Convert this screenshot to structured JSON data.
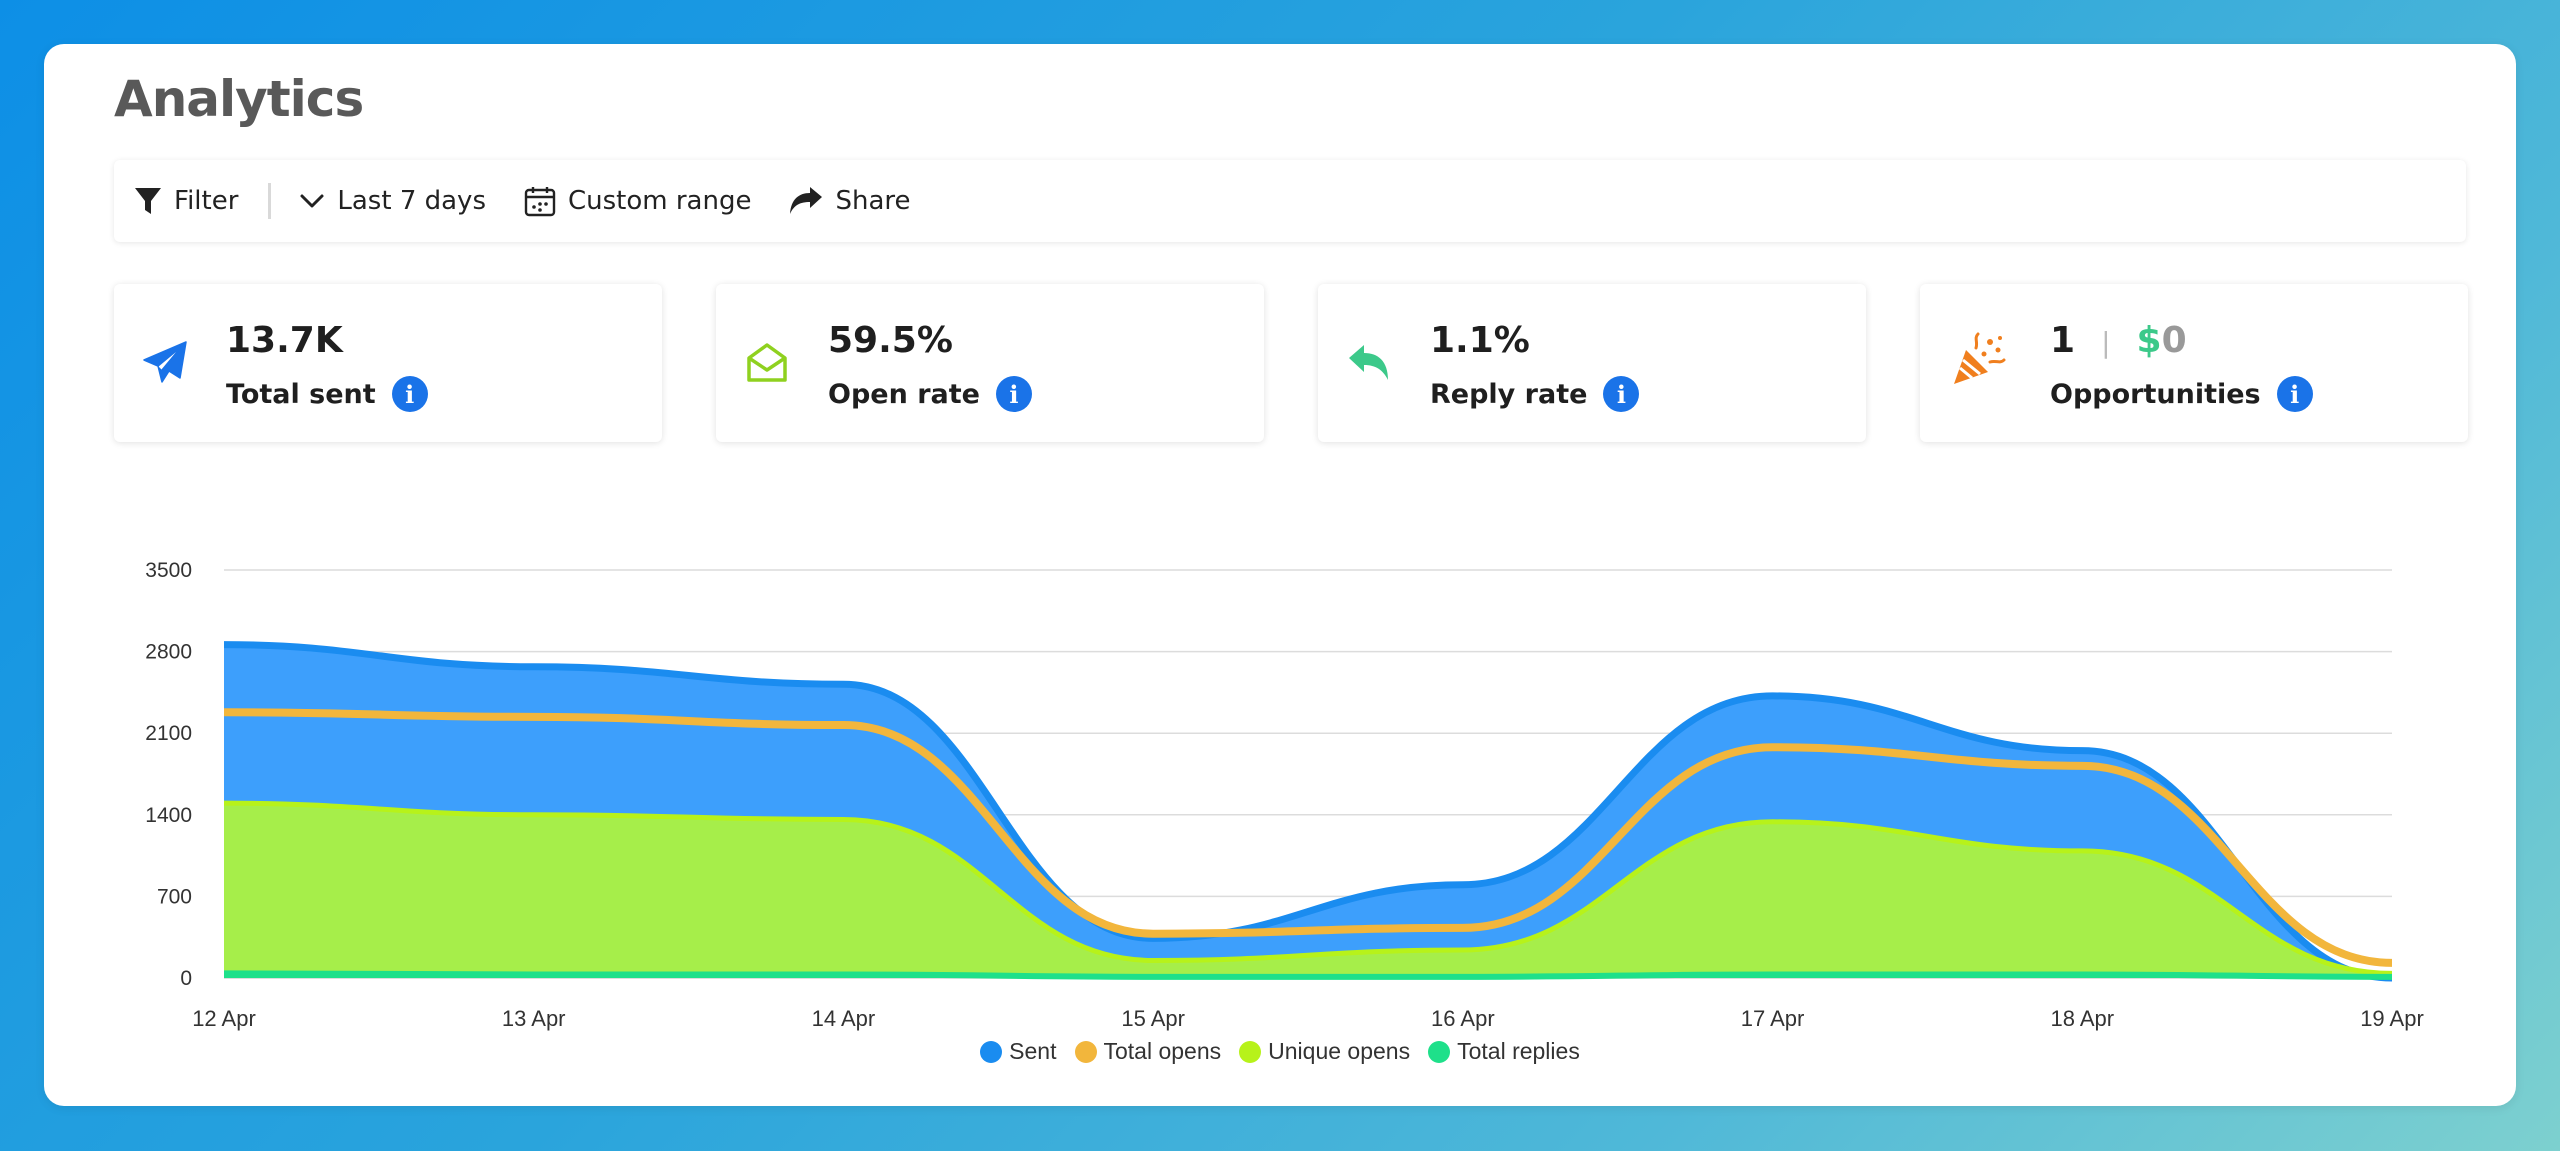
{
  "page": {
    "title": "Analytics"
  },
  "toolbar": {
    "filter_label": "Filter",
    "range_label": "Last 7 days",
    "custom_label": "Custom range",
    "share_label": "Share"
  },
  "cards": {
    "sent": {
      "value": "13.7K",
      "label": "Total sent",
      "icon": "paper-plane-icon",
      "color": "#1a73e8"
    },
    "open": {
      "value": "59.5%",
      "label": "Open rate",
      "icon": "envelope-open-icon",
      "color": "#8fd11f"
    },
    "reply": {
      "value": "1.1%",
      "label": "Reply rate",
      "icon": "reply-icon",
      "color": "#3cc98a"
    },
    "opps": {
      "count": "1",
      "separator": "|",
      "currency": "$",
      "amount": "0",
      "label": "Opportunities",
      "icon": "party-popper-icon",
      "color": "#f07f1e"
    }
  },
  "chart_data": {
    "type": "area",
    "x": [
      "12 Apr",
      "13 Apr",
      "14 Apr",
      "15 Apr",
      "16 Apr",
      "17 Apr",
      "18 Apr",
      "19 Apr"
    ],
    "ylim": [
      0,
      3500
    ],
    "yticks": [
      "0",
      "700",
      "1400",
      "2100",
      "2800",
      "3500"
    ],
    "grid": true,
    "legend_position": "bottom",
    "series": [
      {
        "name": "Sent",
        "values": [
          2860,
          2670,
          2520,
          340,
          800,
          2420,
          1950,
          0
        ],
        "color": "#1a8cf0",
        "fill": "#3d9ffc"
      },
      {
        "name": "Total opens",
        "values": [
          2280,
          2240,
          2170,
          380,
          430,
          1980,
          1820,
          130
        ],
        "color": "#f2b63c"
      },
      {
        "name": "Unique opens",
        "values": [
          1500,
          1400,
          1360,
          150,
          240,
          1340,
          1090,
          40
        ],
        "color": "#b7f21a",
        "fill": "#a6ee4a"
      },
      {
        "name": "Total replies",
        "values": [
          40,
          30,
          30,
          10,
          10,
          30,
          30,
          10
        ],
        "color": "#1ee08a"
      }
    ]
  }
}
